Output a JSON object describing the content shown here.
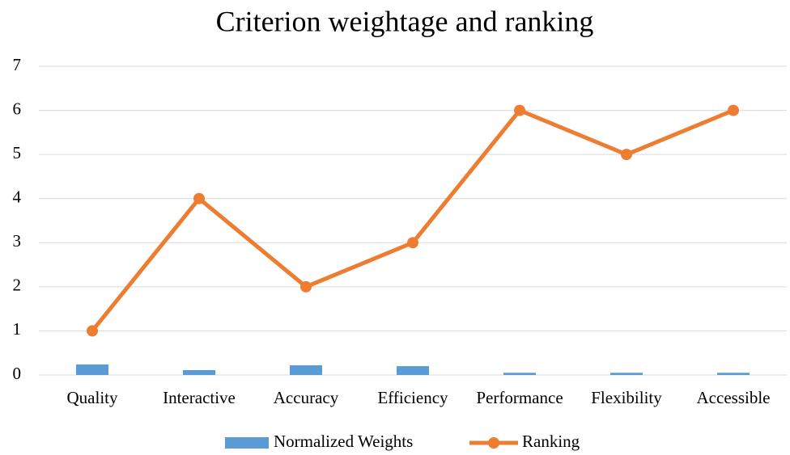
{
  "chart_data": {
    "type": "combo",
    "title": "Criterion weightage and ranking",
    "categories": [
      "Quality",
      "Interactive",
      "Accuracy",
      "Efficiency",
      "Performance",
      "Flexibility",
      "Accessible"
    ],
    "series": [
      {
        "name": "Normalized Weights",
        "type": "bar",
        "color": "#5b9bd5",
        "values": [
          0.24,
          0.11,
          0.22,
          0.2,
          0.05,
          0.05,
          0.05
        ]
      },
      {
        "name": "Ranking",
        "type": "line",
        "color": "#ed7d31",
        "values": [
          1,
          4,
          2,
          3,
          6,
          5,
          6
        ]
      }
    ],
    "ylim": [
      0,
      7
    ],
    "yticks": [
      0,
      1,
      2,
      3,
      4,
      5,
      6,
      7
    ],
    "grid": true,
    "legend": "bottom"
  }
}
